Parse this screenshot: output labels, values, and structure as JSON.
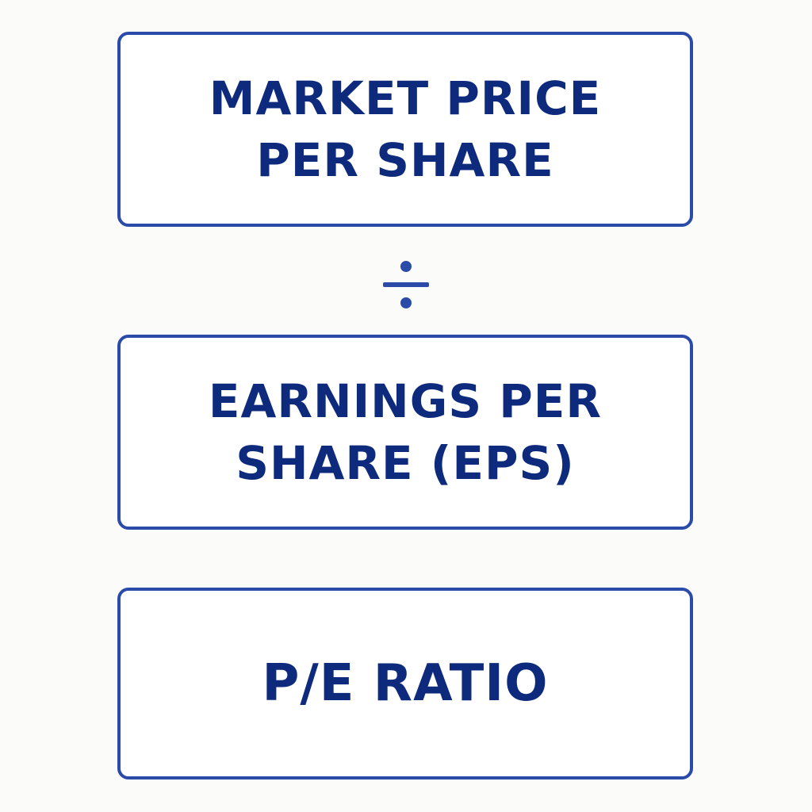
{
  "diagram": {
    "numerator": {
      "label": "MARKET PRICE\nPER SHARE"
    },
    "operator": {
      "symbol": "÷",
      "icon": "divide-icon"
    },
    "denominator": {
      "label": "EARNINGS PER\nSHARE (EPS)"
    },
    "result": {
      "label": "P/E RATIO"
    }
  },
  "colors": {
    "border": "#2a4ba8",
    "text": "#0e2a7d",
    "background": "#fbfbf9"
  }
}
